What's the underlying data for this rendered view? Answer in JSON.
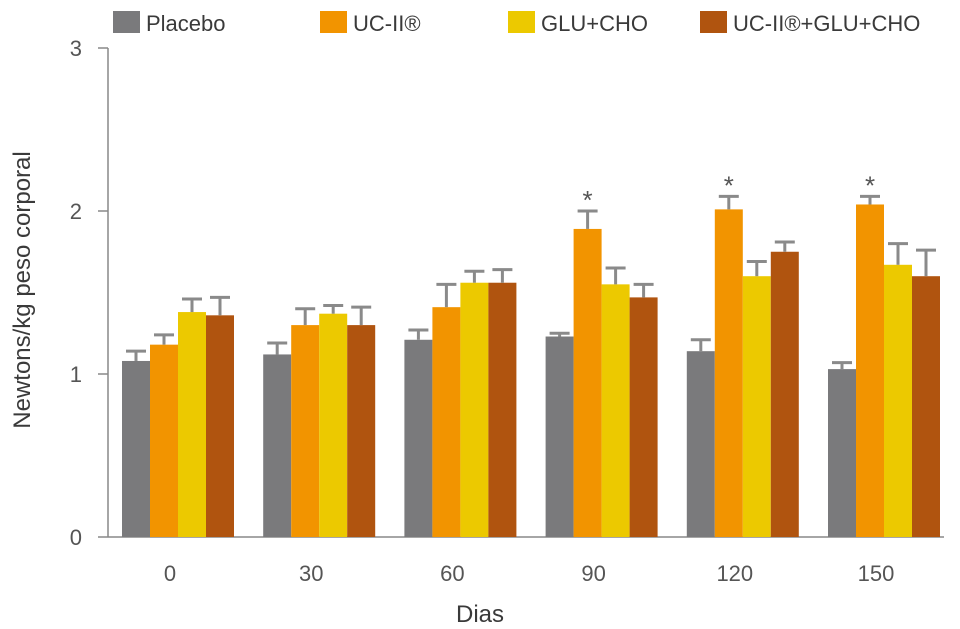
{
  "chart_data": {
    "type": "bar",
    "xlabel": "Dias",
    "ylabel": "Newtons/kg peso corporal",
    "ylim": [
      0,
      3
    ],
    "yticks": [
      "0",
      "1",
      "2",
      "3"
    ],
    "categories": [
      "0",
      "30",
      "60",
      "90",
      "120",
      "150"
    ],
    "legend_position": "top",
    "series": [
      {
        "name": "Placebo",
        "color": "#7a7a7c",
        "values": [
          1.08,
          1.12,
          1.21,
          1.23,
          1.14,
          1.03
        ],
        "error": [
          0.06,
          0.07,
          0.06,
          0.02,
          0.07,
          0.04
        ]
      },
      {
        "name": "UC-II®",
        "color": "#f29400",
        "values": [
          1.18,
          1.3,
          1.41,
          1.89,
          2.01,
          2.04
        ],
        "error": [
          0.06,
          0.1,
          0.14,
          0.11,
          0.08,
          0.05
        ]
      },
      {
        "name": "GLU+CHO",
        "color": "#ecc900",
        "values": [
          1.38,
          1.37,
          1.56,
          1.55,
          1.6,
          1.67
        ],
        "error": [
          0.08,
          0.05,
          0.07,
          0.1,
          0.09,
          0.13
        ]
      },
      {
        "name": "UC-II®+GLU+CHO",
        "color": "#b0540f",
        "values": [
          1.36,
          1.3,
          1.56,
          1.47,
          1.75,
          1.6
        ],
        "error": [
          0.11,
          0.11,
          0.08,
          0.08,
          0.06,
          0.16
        ]
      }
    ],
    "annotations": [
      {
        "series": 1,
        "category": 3,
        "text": "*"
      },
      {
        "series": 1,
        "category": 4,
        "text": "*"
      },
      {
        "series": 1,
        "category": 5,
        "text": "*"
      }
    ],
    "error_color": "#8a8a8a",
    "axis_color": "#888888"
  }
}
